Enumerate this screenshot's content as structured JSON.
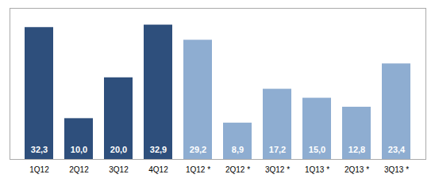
{
  "chart_data": {
    "type": "bar",
    "categories": [
      "1Q12",
      "2Q12",
      "3Q12",
      "4Q12",
      "1Q12 *",
      "2Q12 *",
      "3Q12 *",
      "1Q13 *",
      "2Q13 *",
      "3Q13 *"
    ],
    "values": [
      32.3,
      10.0,
      20.0,
      32.9,
      29.2,
      8.9,
      17.2,
      15.0,
      12.8,
      23.4
    ],
    "value_labels": [
      "32,3",
      "10,0",
      "20,0",
      "32,9",
      "29,2",
      "8,9",
      "17,2",
      "15,0",
      "12,8",
      "23,4"
    ],
    "colors": [
      "#2e4f7c",
      "#2e4f7c",
      "#2e4f7c",
      "#2e4f7c",
      "#8eadd1",
      "#8eadd1",
      "#8eadd1",
      "#8eadd1",
      "#8eadd1",
      "#8eadd1"
    ],
    "data_labels": true,
    "ylim": [
      0,
      37
    ],
    "tick_labels": "x"
  }
}
